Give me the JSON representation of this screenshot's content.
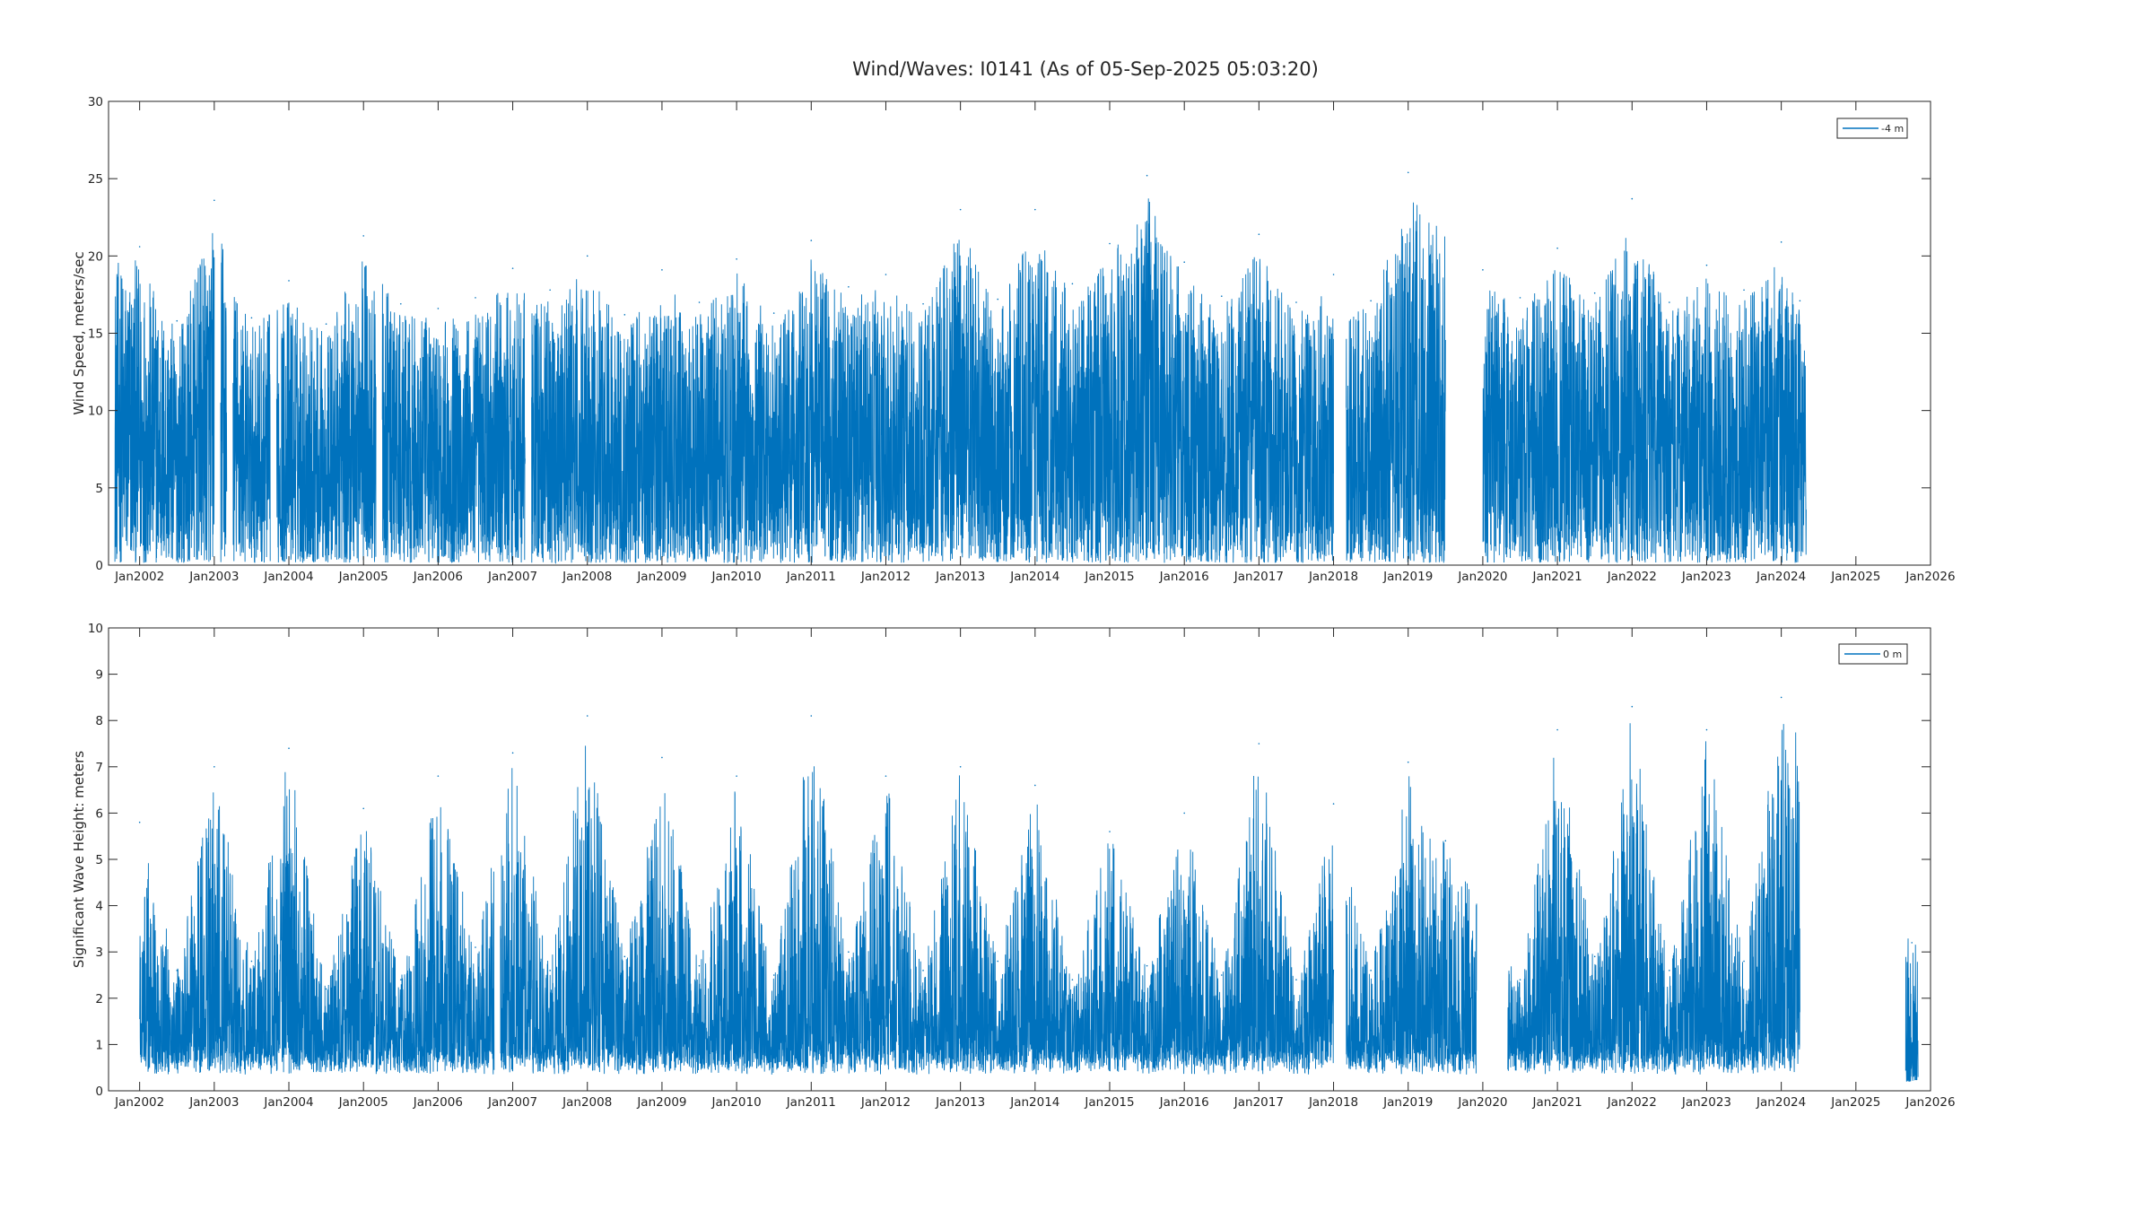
{
  "figure": {
    "title": "Wind/Waves: I0141 (As of 05-Sep-2025 05:03:20)"
  },
  "colors": {
    "series": "#0072bd",
    "axes": "#262626",
    "background": "#ffffff"
  },
  "chart_data": [
    {
      "type": "line",
      "title": "",
      "xlabel": "",
      "ylabel": "Wind Speed, meters/sec",
      "x_tick_labels": [
        "Jan2002",
        "Jan2003",
        "Jan2004",
        "Jan2005",
        "Jan2006",
        "Jan2007",
        "Jan2008",
        "Jan2009",
        "Jan2010",
        "Jan2011",
        "Jan2012",
        "Jan2013",
        "Jan2014",
        "Jan2015",
        "Jan2016",
        "Jan2017",
        "Jan2018",
        "Jan2019",
        "Jan2020",
        "Jan2021",
        "Jan2022",
        "Jan2023",
        "Jan2024",
        "Jan2025",
        "Jan2026"
      ],
      "xlim": [
        "2001-08",
        "2026-01"
      ],
      "ylim": [
        0,
        30
      ],
      "y_ticks": [
        0,
        5,
        10,
        15,
        20,
        25,
        30
      ],
      "legend": {
        "placement": "top-right",
        "entries": [
          "-4 m"
        ]
      },
      "grid": false,
      "data_gaps": [
        [
          "2003-01",
          "2003-02"
        ],
        [
          "2003-03",
          "2003-04"
        ],
        [
          "2003-10",
          "2003-11"
        ],
        [
          "2005-03",
          "2005-04"
        ],
        [
          "2007-03",
          "2007-04"
        ],
        [
          "2018-01",
          "2018-03"
        ],
        [
          "2019-07",
          "2020-01"
        ]
      ],
      "series": [
        {
          "name": "-4 m",
          "x": [
            "2002-01",
            "2002-07",
            "2003-01",
            "2003-07",
            "2004-01",
            "2004-07",
            "2005-01",
            "2005-07",
            "2006-01",
            "2006-07",
            "2007-01",
            "2007-07",
            "2008-01",
            "2008-07",
            "2009-01",
            "2009-07",
            "2010-01",
            "2010-07",
            "2011-01",
            "2011-07",
            "2012-01",
            "2012-07",
            "2013-01",
            "2013-07",
            "2014-01",
            "2014-07",
            "2015-01",
            "2015-07",
            "2016-01",
            "2016-07",
            "2017-01",
            "2017-07",
            "2018-01",
            "2018-07",
            "2019-01",
            "2020-01",
            "2020-07",
            "2021-01",
            "2021-07",
            "2022-01",
            "2022-07",
            "2023-01",
            "2023-07",
            "2024-01",
            "2024-04"
          ],
          "values": [
            20.6,
            15.8,
            23.6,
            16.0,
            18.4,
            15.6,
            21.3,
            16.9,
            16.6,
            17.3,
            19.2,
            17.8,
            20.0,
            16.2,
            19.1,
            17.0,
            19.8,
            16.3,
            21.0,
            18.0,
            18.8,
            16.9,
            23.0,
            17.2,
            23.0,
            18.2,
            20.8,
            25.2,
            19.6,
            17.4,
            21.4,
            17.0,
            18.8,
            17.1,
            25.4,
            19.1,
            17.3,
            20.5,
            17.6,
            23.7,
            17.0,
            19.4,
            17.8,
            20.9,
            17.1
          ]
        }
      ]
    },
    {
      "type": "line",
      "title": "",
      "xlabel": "",
      "ylabel": "Significant Wave Height:  meters",
      "x_tick_labels": [
        "Jan2002",
        "Jan2003",
        "Jan2004",
        "Jan2005",
        "Jan2006",
        "Jan2007",
        "Jan2008",
        "Jan2009",
        "Jan2010",
        "Jan2011",
        "Jan2012",
        "Jan2013",
        "Jan2014",
        "Jan2015",
        "Jan2016",
        "Jan2017",
        "Jan2018",
        "Jan2019",
        "Jan2020",
        "Jan2021",
        "Jan2022",
        "Jan2023",
        "Jan2024",
        "Jan2025",
        "Jan2026"
      ],
      "xlim": [
        "2001-08",
        "2026-01"
      ],
      "ylim": [
        0,
        10
      ],
      "y_ticks": [
        0,
        1,
        2,
        3,
        4,
        5,
        6,
        7,
        8,
        9,
        10
      ],
      "legend": {
        "placement": "top-right",
        "entries": [
          "0 m"
        ]
      },
      "grid": false,
      "data_gaps": [
        [
          "2006-10",
          "2006-11"
        ],
        [
          "2018-01",
          "2018-03"
        ],
        [
          "2019-12",
          "2020-05"
        ],
        [
          "2024-04",
          "2025-09"
        ]
      ],
      "series": [
        {
          "name": "0 m",
          "x": [
            "2002-01",
            "2002-07",
            "2003-01",
            "2003-07",
            "2004-01",
            "2004-07",
            "2005-01",
            "2005-07",
            "2006-01",
            "2006-07",
            "2007-01",
            "2007-07",
            "2008-01",
            "2008-07",
            "2009-01",
            "2009-07",
            "2010-01",
            "2010-07",
            "2011-01",
            "2011-07",
            "2012-01",
            "2012-07",
            "2013-01",
            "2013-07",
            "2014-01",
            "2014-07",
            "2015-01",
            "2015-07",
            "2016-01",
            "2016-07",
            "2017-01",
            "2017-07",
            "2018-01",
            "2018-07",
            "2019-01",
            "2019-07",
            "2020-07",
            "2021-01",
            "2021-07",
            "2022-01",
            "2022-07",
            "2023-01",
            "2023-07",
            "2024-01",
            "2025-10"
          ],
          "values": [
            5.8,
            2.6,
            7.0,
            2.8,
            7.4,
            2.2,
            6.1,
            2.4,
            6.8,
            3.1,
            7.3,
            2.6,
            8.1,
            2.9,
            7.2,
            2.7,
            6.8,
            2.5,
            8.1,
            3.0,
            6.8,
            2.6,
            7.0,
            2.8,
            6.6,
            2.4,
            5.6,
            2.7,
            6.0,
            2.5,
            7.5,
            2.4,
            6.2,
            2.6,
            7.1,
            5.4,
            2.4,
            7.8,
            2.9,
            8.3,
            2.6,
            7.8,
            2.8,
            8.5,
            3.2
          ]
        }
      ]
    }
  ]
}
